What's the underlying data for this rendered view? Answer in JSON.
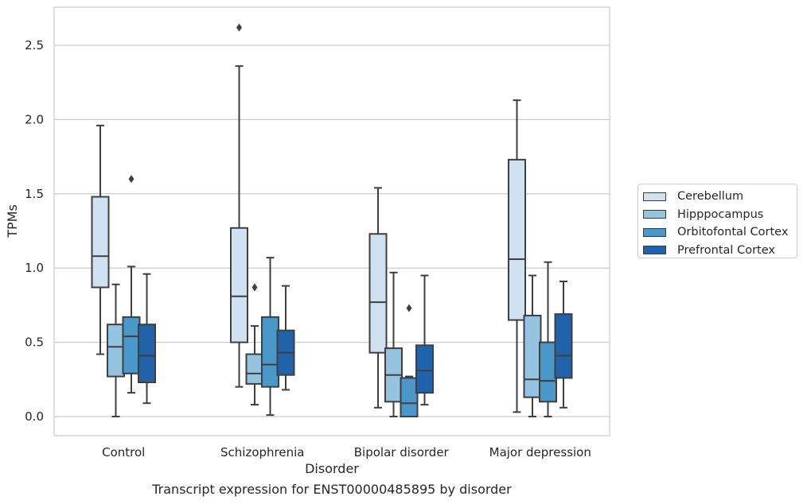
{
  "chart_data": {
    "type": "box",
    "xlabel": "Disorder",
    "ylabel": "TPMs",
    "caption": "Transcript expression for ENST00000485895 by disorder",
    "ylim": [
      -0.13,
      2.76
    ],
    "yticks": [
      "0.0",
      "0.5",
      "1.0",
      "1.5",
      "2.0",
      "2.5"
    ],
    "grid": "horizontal",
    "legend_position": "right",
    "categories": [
      "Control",
      "Schizophrenia",
      "Bipolar disorder",
      "Major depression"
    ],
    "series": [
      {
        "name": "Cerebellum",
        "color": "#d0e1f2",
        "boxes": [
          {
            "whisker_low": 0.42,
            "q1": 0.87,
            "median": 1.08,
            "q3": 1.48,
            "whisker_high": 1.96,
            "outliers": []
          },
          {
            "whisker_low": 0.2,
            "q1": 0.5,
            "median": 0.81,
            "q3": 1.27,
            "whisker_high": 2.36,
            "outliers": [
              2.62
            ]
          },
          {
            "whisker_low": 0.06,
            "q1": 0.43,
            "median": 0.77,
            "q3": 1.23,
            "whisker_high": 1.54,
            "outliers": []
          },
          {
            "whisker_low": 0.03,
            "q1": 0.65,
            "median": 1.06,
            "q3": 1.73,
            "whisker_high": 2.13,
            "outliers": []
          }
        ]
      },
      {
        "name": "Hipppocampus",
        "color": "#94c4df",
        "boxes": [
          {
            "whisker_low": 0.0,
            "q1": 0.27,
            "median": 0.47,
            "q3": 0.62,
            "whisker_high": 0.89,
            "outliers": []
          },
          {
            "whisker_low": 0.08,
            "q1": 0.22,
            "median": 0.29,
            "q3": 0.42,
            "whisker_high": 0.61,
            "outliers": [
              0.87
            ]
          },
          {
            "whisker_low": 0.0,
            "q1": 0.1,
            "median": 0.28,
            "q3": 0.46,
            "whisker_high": 0.97,
            "outliers": []
          },
          {
            "whisker_low": 0.0,
            "q1": 0.13,
            "median": 0.25,
            "q3": 0.68,
            "whisker_high": 0.95,
            "outliers": []
          }
        ]
      },
      {
        "name": "Orbitofontal Cortex",
        "color": "#4a98c9",
        "boxes": [
          {
            "whisker_low": 0.16,
            "q1": 0.29,
            "median": 0.54,
            "q3": 0.67,
            "whisker_high": 1.01,
            "outliers": [
              1.6
            ]
          },
          {
            "whisker_low": 0.01,
            "q1": 0.2,
            "median": 0.35,
            "q3": 0.67,
            "whisker_high": 1.07,
            "outliers": []
          },
          {
            "whisker_low": 0.0,
            "q1": 0.0,
            "median": 0.09,
            "q3": 0.26,
            "whisker_high": 0.27,
            "outliers": [
              0.73
            ]
          },
          {
            "whisker_low": 0.0,
            "q1": 0.1,
            "median": 0.24,
            "q3": 0.5,
            "whisker_high": 1.04,
            "outliers": []
          }
        ]
      },
      {
        "name": "Prefrontal Cortex",
        "color": "#2163aa",
        "boxes": [
          {
            "whisker_low": 0.09,
            "q1": 0.23,
            "median": 0.41,
            "q3": 0.62,
            "whisker_high": 0.96,
            "outliers": []
          },
          {
            "whisker_low": 0.18,
            "q1": 0.28,
            "median": 0.43,
            "q3": 0.58,
            "whisker_high": 0.88,
            "outliers": []
          },
          {
            "whisker_low": 0.08,
            "q1": 0.16,
            "median": 0.31,
            "q3": 0.48,
            "whisker_high": 0.95,
            "outliers": []
          },
          {
            "whisker_low": 0.06,
            "q1": 0.26,
            "median": 0.41,
            "q3": 0.69,
            "whisker_high": 0.91,
            "outliers": []
          }
        ]
      }
    ]
  }
}
